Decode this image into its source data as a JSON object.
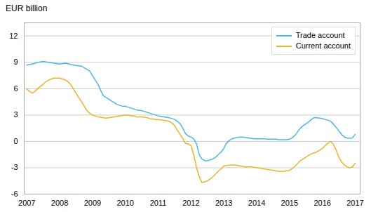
{
  "chart_data": {
    "type": "line",
    "title": "EUR billion",
    "x": [
      2007.0,
      2007.08,
      2007.17,
      2007.25,
      2007.33,
      2007.42,
      2007.5,
      2007.58,
      2007.67,
      2007.75,
      2007.83,
      2007.92,
      2008.0,
      2008.08,
      2008.17,
      2008.25,
      2008.33,
      2008.42,
      2008.5,
      2008.58,
      2008.67,
      2008.75,
      2008.83,
      2008.92,
      2009.0,
      2009.08,
      2009.17,
      2009.25,
      2009.33,
      2009.42,
      2009.5,
      2009.58,
      2009.67,
      2009.75,
      2009.83,
      2009.92,
      2010.0,
      2010.08,
      2010.17,
      2010.25,
      2010.33,
      2010.42,
      2010.5,
      2010.58,
      2010.67,
      2010.75,
      2010.83,
      2010.92,
      2011.0,
      2011.08,
      2011.17,
      2011.25,
      2011.33,
      2011.42,
      2011.5,
      2011.58,
      2011.67,
      2011.75,
      2011.83,
      2011.92,
      2012.0,
      2012.08,
      2012.17,
      2012.25,
      2012.33,
      2012.42,
      2012.5,
      2012.58,
      2012.67,
      2012.75,
      2012.83,
      2012.92,
      2013.0,
      2013.08,
      2013.17,
      2013.25,
      2013.33,
      2013.42,
      2013.5,
      2013.58,
      2013.67,
      2013.75,
      2013.83,
      2013.92,
      2014.0,
      2014.08,
      2014.17,
      2014.25,
      2014.33,
      2014.42,
      2014.5,
      2014.58,
      2014.67,
      2014.75,
      2014.83,
      2014.92,
      2015.0,
      2015.08,
      2015.17,
      2015.25,
      2015.33,
      2015.42,
      2015.5,
      2015.58,
      2015.67,
      2015.75,
      2015.83,
      2015.92,
      2016.0,
      2016.08,
      2016.17,
      2016.25,
      2016.33,
      2016.42,
      2016.5,
      2016.58,
      2016.67,
      2016.75,
      2016.83,
      2016.92,
      2017.0
    ],
    "series": [
      {
        "name": "Trade account",
        "color": "#4ab8e8",
        "values": [
          8.7,
          8.75,
          8.8,
          8.9,
          9.0,
          9.05,
          9.1,
          9.05,
          9.0,
          8.95,
          8.9,
          8.85,
          8.8,
          8.85,
          8.9,
          8.85,
          8.75,
          8.7,
          8.65,
          8.6,
          8.55,
          8.4,
          8.2,
          8.0,
          7.5,
          7.0,
          6.5,
          5.8,
          5.2,
          5.0,
          4.8,
          4.6,
          4.4,
          4.2,
          4.1,
          4.0,
          4.0,
          3.9,
          3.8,
          3.7,
          3.6,
          3.55,
          3.5,
          3.4,
          3.3,
          3.2,
          3.1,
          3.0,
          2.9,
          2.85,
          2.8,
          2.75,
          2.7,
          2.6,
          2.5,
          2.3,
          2.0,
          1.5,
          0.9,
          0.6,
          0.5,
          0.3,
          -0.3,
          -1.5,
          -2.0,
          -2.2,
          -2.2,
          -2.1,
          -2.0,
          -1.8,
          -1.5,
          -1.2,
          -0.8,
          -0.2,
          0.1,
          0.3,
          0.4,
          0.45,
          0.5,
          0.5,
          0.45,
          0.4,
          0.35,
          0.3,
          0.3,
          0.3,
          0.3,
          0.3,
          0.25,
          0.25,
          0.25,
          0.25,
          0.2,
          0.2,
          0.2,
          0.2,
          0.25,
          0.4,
          0.7,
          1.1,
          1.5,
          1.8,
          2.0,
          2.2,
          2.5,
          2.7,
          2.7,
          2.65,
          2.6,
          2.5,
          2.4,
          2.3,
          2.0,
          1.6,
          1.2,
          0.8,
          0.5,
          0.4,
          0.35,
          0.4,
          0.8
        ]
      },
      {
        "name": "Current account",
        "color": "#f0b323",
        "values": [
          6.0,
          5.7,
          5.5,
          5.7,
          6.0,
          6.3,
          6.5,
          6.8,
          7.0,
          7.1,
          7.2,
          7.2,
          7.2,
          7.1,
          7.0,
          6.8,
          6.5,
          6.0,
          5.5,
          5.0,
          4.5,
          4.0,
          3.5,
          3.2,
          3.0,
          2.9,
          2.8,
          2.75,
          2.7,
          2.65,
          2.7,
          2.75,
          2.8,
          2.85,
          2.9,
          2.95,
          3.0,
          3.0,
          2.9,
          2.9,
          2.8,
          2.8,
          2.8,
          2.75,
          2.7,
          2.6,
          2.55,
          2.5,
          2.5,
          2.45,
          2.4,
          2.35,
          2.3,
          2.1,
          1.8,
          1.3,
          0.8,
          0.3,
          -0.2,
          -0.3,
          -0.5,
          -1.5,
          -3.0,
          -4.0,
          -4.7,
          -4.6,
          -4.5,
          -4.3,
          -4.0,
          -3.7,
          -3.4,
          -3.1,
          -2.8,
          -2.75,
          -2.7,
          -2.7,
          -2.7,
          -2.75,
          -2.8,
          -2.85,
          -2.9,
          -2.9,
          -2.9,
          -2.95,
          -3.0,
          -3.05,
          -3.1,
          -3.15,
          -3.2,
          -3.25,
          -3.3,
          -3.35,
          -3.4,
          -3.4,
          -3.4,
          -3.35,
          -3.3,
          -3.1,
          -2.8,
          -2.5,
          -2.2,
          -2.0,
          -1.8,
          -1.6,
          -1.4,
          -1.3,
          -1.2,
          -1.0,
          -0.8,
          -0.5,
          -0.2,
          0.0,
          -0.3,
          -1.0,
          -1.8,
          -2.3,
          -2.7,
          -2.9,
          -3.0,
          -2.9,
          -2.5
        ]
      }
    ],
    "xlim": [
      2006.92,
      2017.15
    ],
    "xticks": [
      2007,
      2008,
      2009,
      2010,
      2011,
      2012,
      2013,
      2014,
      2015,
      2016,
      2017
    ],
    "ylim": [
      -6,
      13.5
    ],
    "yticks": [
      -6,
      -3,
      0,
      3,
      6,
      9,
      12
    ],
    "grid": true,
    "legend": "upper right"
  }
}
